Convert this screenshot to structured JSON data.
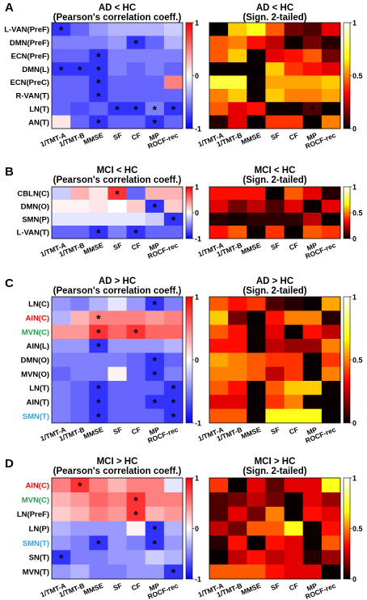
{
  "colors": {
    "corr_scale": [
      "#0000ff",
      "#ffffff",
      "#ff0000"
    ],
    "pval_scale": [
      "#000000",
      "#ff0000",
      "#ffff00",
      "#ffffff"
    ]
  },
  "chart_data": [
    {
      "type": "heatmap",
      "panel_letter": "A",
      "title": "AD < HC",
      "subtitle": "(Pearson's correlation coeff.)",
      "row_labels": [
        "L-VAN(PreF)",
        "DMN(PreF)",
        "ECN(PreF)",
        "DMN(L)",
        "ECN(PreC)",
        "R-VAN(T)",
        "LN(T)",
        "AN(T)"
      ],
      "row_colors": [
        "#000000",
        "#000000",
        "#000000",
        "#000000",
        "#000000",
        "#000000",
        "#000000",
        "#000000"
      ],
      "col_labels": [
        "1/TMT-A",
        "1/TMT-B",
        "MMSE",
        "SF",
        "CF",
        "MP",
        "ROCF-rec"
      ],
      "values": [
        [
          -0.8,
          -0.6,
          -0.4,
          -0.3,
          -0.3,
          -0.3,
          -0.2
        ],
        [
          -0.5,
          -0.5,
          -0.5,
          -0.4,
          -0.8,
          -0.6,
          -0.3
        ],
        [
          -0.6,
          -0.6,
          -0.8,
          -0.5,
          -0.5,
          -0.5,
          -0.5
        ],
        [
          -0.8,
          -0.8,
          -0.8,
          -0.5,
          -0.6,
          -0.5,
          -0.6
        ],
        [
          -0.6,
          -0.6,
          -0.8,
          -0.6,
          -0.6,
          -0.6,
          0.5
        ],
        [
          -0.6,
          -0.6,
          -0.8,
          -0.6,
          -0.6,
          -0.6,
          -0.6
        ],
        [
          -0.6,
          -0.7,
          -0.6,
          -0.8,
          -0.8,
          -0.5,
          -0.8
        ],
        [
          0.1,
          -0.6,
          -0.8,
          -0.6,
          -0.6,
          -0.8,
          -0.6
        ]
      ],
      "stars": [
        [
          0,
          0
        ],
        [
          1,
          4
        ],
        [
          2,
          2
        ],
        [
          3,
          0
        ],
        [
          3,
          1
        ],
        [
          3,
          2
        ],
        [
          4,
          2
        ],
        [
          5,
          2
        ],
        [
          6,
          3
        ],
        [
          6,
          4
        ],
        [
          6,
          5
        ],
        [
          6,
          6
        ],
        [
          7,
          2
        ],
        [
          7,
          5
        ]
      ],
      "colorbar": {
        "range": [
          -1,
          1
        ],
        "ticks": [
          "1",
          "0",
          "-1"
        ]
      }
    },
    {
      "type": "heatmap",
      "panel_letter": "",
      "title": "AD < HC",
      "subtitle": "(Sign. 2-tailed)",
      "row_labels": [],
      "col_labels": [
        "1/TMT-A",
        "1/TMT-B",
        "MMSE",
        "SF",
        "CF",
        "MP",
        "ROCF-rec"
      ],
      "values": [
        [
          0.005,
          0.6,
          0.7,
          0.45,
          0.15,
          0.1,
          0.3
        ],
        [
          0.45,
          0.5,
          0.35,
          0.25,
          0.02,
          0.15,
          0.05
        ],
        [
          0.45,
          0.6,
          0.01,
          0.3,
          0.35,
          0.45,
          0.15
        ],
        [
          0.01,
          0.01,
          0.01,
          0.6,
          0.4,
          0.35,
          0.3
        ],
        [
          0.75,
          0.75,
          0.02,
          0.55,
          0.55,
          0.55,
          0.6
        ],
        [
          0.5,
          0.6,
          0.02,
          0.6,
          0.5,
          0.5,
          0.55
        ],
        [
          0.45,
          0.3,
          0.35,
          0.02,
          0.02,
          0.1,
          0.01
        ],
        [
          0.05,
          0.3,
          0.01,
          0.4,
          0.4,
          0.01,
          0.5
        ]
      ],
      "stars": [
        [
          0,
          0
        ],
        [
          1,
          4
        ],
        [
          2,
          2
        ],
        [
          3,
          0
        ],
        [
          3,
          1
        ],
        [
          3,
          2
        ],
        [
          4,
          2
        ],
        [
          5,
          2
        ],
        [
          6,
          3
        ],
        [
          6,
          4
        ],
        [
          6,
          5
        ],
        [
          6,
          6
        ],
        [
          7,
          2
        ],
        [
          7,
          5
        ]
      ],
      "colorbar": {
        "range": [
          0,
          1
        ],
        "ticks": [
          "1",
          "0.5",
          "0"
        ]
      }
    },
    {
      "type": "heatmap",
      "panel_letter": "B",
      "title": "MCI < HC",
      "subtitle": "(Pearson's correlation coeff.)",
      "row_labels": [
        "CBLN(C)",
        "DMN(O)",
        "SMN(P)",
        "L-VAN(T)"
      ],
      "row_colors": [
        "#000000",
        "#000000",
        "#000000",
        "#000000"
      ],
      "col_labels": [
        "1/TMT-A",
        "1/TMT-B",
        "MMSE",
        "SF",
        "CF",
        "MP",
        "ROCF-rec"
      ],
      "values": [
        [
          -0.2,
          0.3,
          0.1,
          0.8,
          -0.6,
          0.3,
          0.3
        ],
        [
          0.05,
          0.05,
          0.1,
          0.0,
          0.2,
          -0.8,
          0.2
        ],
        [
          -0.1,
          -0.1,
          -0.1,
          -0.1,
          -0.1,
          -0.2,
          -0.8
        ],
        [
          -0.6,
          -0.6,
          -0.8,
          -0.5,
          -0.8,
          -0.6,
          -0.6
        ]
      ],
      "stars": [
        [
          0,
          3
        ],
        [
          1,
          5
        ],
        [
          2,
          6
        ],
        [
          3,
          2
        ],
        [
          3,
          4
        ]
      ],
      "colorbar": {
        "range": [
          -1,
          1
        ],
        "ticks": [
          "1",
          "0",
          "-1"
        ]
      }
    },
    {
      "type": "heatmap",
      "panel_letter": "",
      "title": "MCI < HC",
      "subtitle": "(Sign. 2-tailed)",
      "row_labels": [],
      "col_labels": [
        "1/TMT-A",
        "1/TMT-B",
        "MMSE",
        "SF",
        "CF",
        "MP",
        "ROCF-rec"
      ],
      "values": [
        [
          0.35,
          0.35,
          0.35,
          0.01,
          0.45,
          0.3,
          0.05
        ],
        [
          0.3,
          0.15,
          0.25,
          0.1,
          0.3,
          0.02,
          0.3
        ],
        [
          0.05,
          0.03,
          0.06,
          0.06,
          0.06,
          0.25,
          0.01
        ],
        [
          0.35,
          0.45,
          0.02,
          0.4,
          0.01,
          0.45,
          0.4
        ]
      ],
      "stars": [
        [
          0,
          3
        ],
        [
          1,
          5
        ],
        [
          2,
          6
        ],
        [
          3,
          2
        ],
        [
          3,
          4
        ]
      ],
      "colorbar": {
        "range": [
          0,
          1
        ],
        "ticks": [
          "1",
          "0.5",
          "0"
        ]
      }
    },
    {
      "type": "heatmap",
      "panel_letter": "C",
      "title": "AD > HC",
      "subtitle": "(Pearson's correlation coeff.)",
      "row_labels": [
        "LN(C)",
        "AIN(C)",
        "MVN(C)",
        "AIN(L)",
        "DMN(O)",
        "MVN(O)",
        "LN(T)",
        "AIN(T)",
        "SMN(T)"
      ],
      "row_colors": [
        "#000000",
        "#ff0000",
        "#22a04a",
        "#000000",
        "#000000",
        "#000000",
        "#000000",
        "#000000",
        "#29a8df"
      ],
      "col_labels": [
        "1/TMT-A",
        "1/TMT-B",
        "MMSE",
        "SF",
        "CF",
        "MP",
        "ROCF-rec"
      ],
      "values": [
        [
          -0.4,
          -0.5,
          -0.3,
          -0.1,
          -0.4,
          -0.8,
          -0.5
        ],
        [
          -0.3,
          0.3,
          0.5,
          0.5,
          0.5,
          0.4,
          0.5
        ],
        [
          0.4,
          0.4,
          0.8,
          0.6,
          0.8,
          0.6,
          0.6
        ],
        [
          -0.4,
          -0.4,
          -0.8,
          -0.4,
          -0.4,
          -0.4,
          -0.3
        ],
        [
          -0.5,
          -0.5,
          -0.5,
          -0.5,
          -0.6,
          -0.8,
          -0.6
        ],
        [
          -0.6,
          -0.5,
          -0.5,
          0.05,
          -0.6,
          -0.8,
          -0.5
        ],
        [
          -0.5,
          -0.6,
          -0.8,
          -0.6,
          -0.6,
          -0.6,
          -0.8
        ],
        [
          -0.5,
          -0.6,
          -0.8,
          -0.6,
          -0.6,
          -0.8,
          -0.8
        ],
        [
          -0.5,
          -0.6,
          -0.8,
          -0.6,
          -0.6,
          -0.6,
          -0.8
        ]
      ],
      "stars": [
        [
          0,
          5
        ],
        [
          1,
          2
        ],
        [
          2,
          2
        ],
        [
          2,
          4
        ],
        [
          3,
          2
        ],
        [
          4,
          5
        ],
        [
          5,
          5
        ],
        [
          6,
          2
        ],
        [
          6,
          6
        ],
        [
          7,
          2
        ],
        [
          7,
          5
        ],
        [
          7,
          6
        ],
        [
          8,
          2
        ],
        [
          8,
          6
        ]
      ],
      "colorbar": {
        "range": [
          -1,
          1
        ],
        "ticks": [
          "1",
          "0",
          "-1"
        ]
      }
    },
    {
      "type": "heatmap",
      "panel_letter": "",
      "title": "AD > HC",
      "subtitle": "(Sign. 2-tailed)",
      "row_labels": [],
      "col_labels": [
        "1/TMT-A",
        "1/TMT-B",
        "MMSE",
        "SF",
        "CF",
        "MP",
        "ROCF-rec"
      ],
      "values": [
        [
          0.45,
          0.35,
          0.4,
          0.1,
          0.05,
          0.01,
          0.55
        ],
        [
          0.6,
          0.15,
          0.01,
          0.35,
          0.5,
          0.5,
          0.05
        ],
        [
          0.45,
          0.35,
          0.02,
          0.3,
          0.01,
          0.35,
          0.25
        ],
        [
          0.35,
          0.35,
          0.02,
          0.25,
          0.2,
          0.2,
          0.5
        ],
        [
          0.55,
          0.5,
          0.45,
          0.4,
          0.4,
          0.01,
          0.4
        ],
        [
          0.5,
          0.5,
          0.45,
          0.25,
          0.4,
          0.01,
          0.5
        ],
        [
          0.45,
          0.35,
          0.01,
          0.45,
          0.6,
          0.6,
          0.02
        ],
        [
          0.3,
          0.3,
          0.01,
          0.4,
          0.5,
          0.02,
          0.01
        ],
        [
          0.45,
          0.45,
          0.02,
          0.7,
          0.7,
          0.7,
          0.01
        ]
      ],
      "stars": [
        [
          0,
          5
        ],
        [
          1,
          2
        ],
        [
          2,
          2
        ],
        [
          2,
          4
        ],
        [
          3,
          2
        ],
        [
          4,
          5
        ],
        [
          5,
          5
        ],
        [
          6,
          2
        ],
        [
          6,
          6
        ],
        [
          7,
          2
        ],
        [
          7,
          5
        ],
        [
          7,
          6
        ],
        [
          8,
          2
        ],
        [
          8,
          6
        ]
      ],
      "colorbar": {
        "range": [
          0,
          1
        ],
        "ticks": [
          "1",
          "0.5",
          "0"
        ]
      }
    },
    {
      "type": "heatmap",
      "panel_letter": "D",
      "title": "MCI > HC",
      "subtitle": "(Pearson's correlation coeff.)",
      "row_labels": [
        "AIN(C)",
        "MVN(C)",
        "LN(PreF)",
        "LN(P)",
        "SMN(T)",
        "SN(T)",
        "MVN(T)"
      ],
      "row_colors": [
        "#ff0000",
        "#22a04a",
        "#000000",
        "#000000",
        "#29a8df",
        "#000000",
        "#000000"
      ],
      "col_labels": [
        "1/TMT-A",
        "1/TMT-B",
        "MMSE",
        "SF",
        "CF",
        "MP",
        "ROCF-rec"
      ],
      "values": [
        [
          0.5,
          0.8,
          0.5,
          0.3,
          0.5,
          0.5,
          -0.1
        ],
        [
          0.3,
          0.4,
          0.6,
          0.5,
          0.8,
          0.5,
          0.5
        ],
        [
          0.2,
          0.3,
          0.5,
          0.4,
          0.8,
          0.3,
          0.4
        ],
        [
          -0.3,
          -0.4,
          -0.4,
          -0.4,
          0.05,
          -0.8,
          -0.3
        ],
        [
          -0.4,
          -0.5,
          -0.8,
          -0.4,
          -0.5,
          -0.8,
          -0.4
        ],
        [
          -0.8,
          -0.5,
          -0.5,
          -0.4,
          -0.4,
          -0.2,
          -0.3
        ],
        [
          -0.4,
          -0.3,
          -0.5,
          -0.5,
          -0.4,
          -0.4,
          -0.8
        ]
      ],
      "stars": [
        [
          0,
          1
        ],
        [
          1,
          4
        ],
        [
          2,
          4
        ],
        [
          3,
          5
        ],
        [
          4,
          2
        ],
        [
          4,
          5
        ],
        [
          5,
          0
        ],
        [
          6,
          6
        ]
      ],
      "colorbar": {
        "range": [
          -1,
          1
        ],
        "ticks": [
          "1",
          "0",
          "-1"
        ]
      }
    },
    {
      "type": "heatmap",
      "panel_letter": "",
      "title": "MCI > HC",
      "subtitle": "(Sign. 2-tailed)",
      "row_labels": [],
      "col_labels": [
        "1/TMT-A",
        "1/TMT-B",
        "MMSE",
        "SF",
        "CF",
        "MP",
        "ROCF-rec"
      ],
      "values": [
        [
          0.4,
          0.01,
          0.3,
          0.12,
          0.3,
          0.3,
          0.7
        ],
        [
          0.1,
          0.15,
          0.25,
          0.15,
          0.01,
          0.3,
          0.2
        ],
        [
          0.1,
          0.3,
          0.15,
          0.5,
          0.01,
          0.35,
          0.3
        ],
        [
          0.25,
          0.15,
          0.45,
          0.45,
          0.7,
          0.02,
          0.35
        ],
        [
          0.05,
          0.35,
          0.01,
          0.35,
          0.3,
          0.01,
          0.45
        ],
        [
          0.01,
          0.25,
          0.35,
          0.25,
          0.3,
          0.05,
          0.2
        ],
        [
          0.45,
          0.45,
          0.45,
          0.35,
          0.3,
          0.3,
          0.01
        ]
      ],
      "stars": [
        [
          0,
          1
        ],
        [
          1,
          4
        ],
        [
          2,
          4
        ],
        [
          3,
          5
        ],
        [
          4,
          2
        ],
        [
          4,
          5
        ],
        [
          5,
          0
        ],
        [
          6,
          6
        ]
      ],
      "colorbar": {
        "range": [
          0,
          1
        ],
        "ticks": [
          "1",
          "0.5",
          "0"
        ]
      }
    }
  ]
}
